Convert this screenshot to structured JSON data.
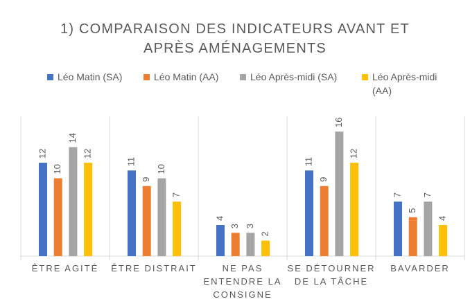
{
  "chart_data": {
    "type": "bar",
    "title": "1) COMPARAISON DES INDICATEURS AVANT ET\nAPRÈS AMÉNAGEMENTS",
    "categories": [
      "ÊTRE AGITÉ",
      "ÊTRE DISTRAIT",
      "NE PAS\nENTENDRE LA\nCONSIGNE",
      "SE DÉTOURNER\nDE LA TÂCHE",
      "BAVARDER"
    ],
    "series": [
      {
        "name": "Léo Matin (SA)",
        "color": "#4472c4",
        "values": [
          12,
          11,
          4,
          11,
          7
        ]
      },
      {
        "name": "Léo Matin (AA)",
        "color": "#ed7d31",
        "values": [
          10,
          9,
          3,
          9,
          5
        ]
      },
      {
        "name": "Léo Après-midi (SA)",
        "color": "#a5a5a5",
        "values": [
          14,
          10,
          3,
          16,
          7
        ]
      },
      {
        "name": "Léo Après-midi (AA)",
        "color": "#ffc000",
        "values": [
          12,
          7,
          2,
          12,
          4
        ]
      }
    ]
  }
}
